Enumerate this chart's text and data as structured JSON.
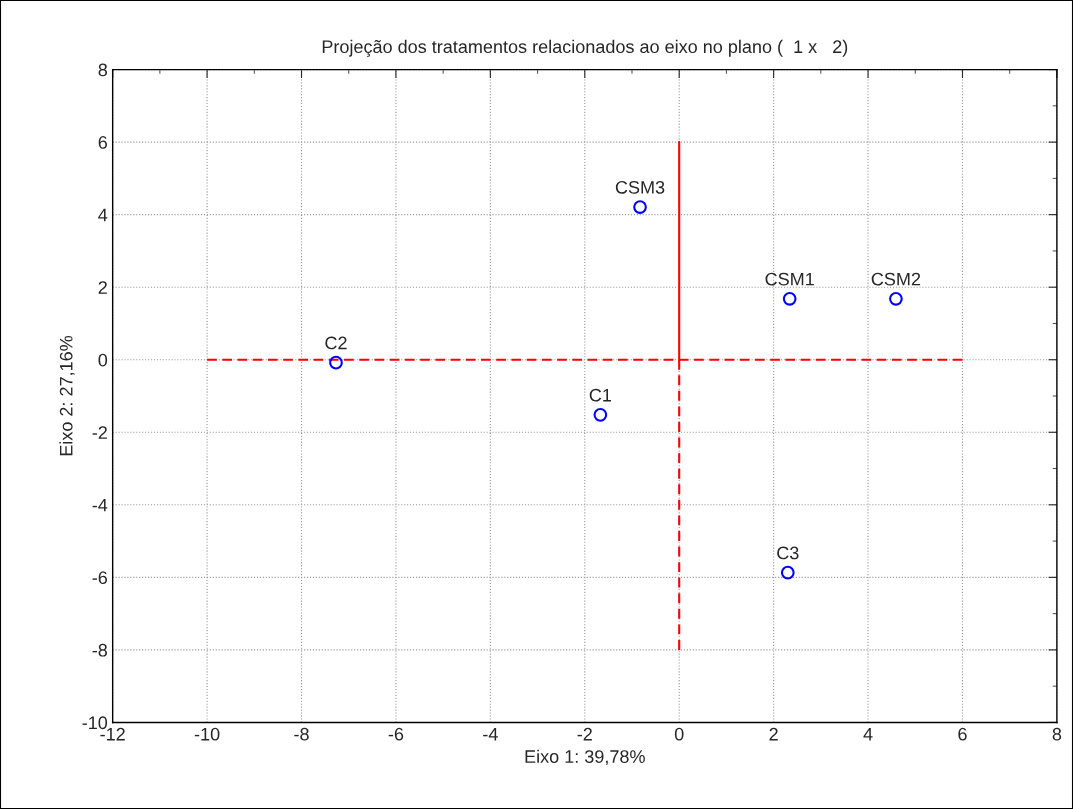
{
  "chart_data": {
    "type": "scatter",
    "title": "Projeção dos tratamentos relacionados ao eixo no plano (  1 x   2)",
    "xlabel": "Eixo 1: 39,78%",
    "ylabel": "Eixo 2: 27,16%",
    "xlim": [
      -12,
      8
    ],
    "ylim": [
      -10,
      8
    ],
    "xticks": [
      -12,
      -10,
      -8,
      -6,
      -4,
      -2,
      0,
      2,
      4,
      6,
      8
    ],
    "yticks": [
      -10,
      -8,
      -6,
      -4,
      -2,
      0,
      2,
      4,
      6,
      8
    ],
    "grid": true,
    "marker": "circle",
    "series": [
      {
        "color": "#0000ff",
        "x": [
          -7.27,
          -1.67,
          -0.83,
          2.34,
          4.59,
          2.3
        ],
        "values": [
          -0.08,
          -1.52,
          4.21,
          1.68,
          1.68,
          -5.87
        ]
      },
      {
        "type": "line",
        "color": "#ff0000",
        "line_style": "dashed",
        "marker": "none",
        "x": [
          -10,
          6
        ],
        "values": [
          0,
          0
        ]
      },
      {
        "type": "line",
        "color": "#ff0000",
        "line_style": "solid",
        "marker": "none",
        "x": [
          0,
          0
        ],
        "values": [
          0,
          6
        ]
      },
      {
        "type": "line",
        "color": "#ff0000",
        "line_style": "dashed",
        "marker": "none",
        "x": [
          0,
          0
        ],
        "values": [
          0,
          -8
        ]
      }
    ],
    "annotations": [
      {
        "text": "C2",
        "x": -7.27,
        "y": -0.08
      },
      {
        "text": "C1",
        "x": -1.67,
        "y": -1.52
      },
      {
        "text": "CSM3",
        "x": -0.83,
        "y": 4.21
      },
      {
        "text": "CSM1",
        "x": 2.34,
        "y": 1.68
      },
      {
        "text": "CSM2",
        "x": 4.59,
        "y": 1.68
      },
      {
        "text": "C3",
        "x": 2.3,
        "y": -5.87
      }
    ]
  }
}
